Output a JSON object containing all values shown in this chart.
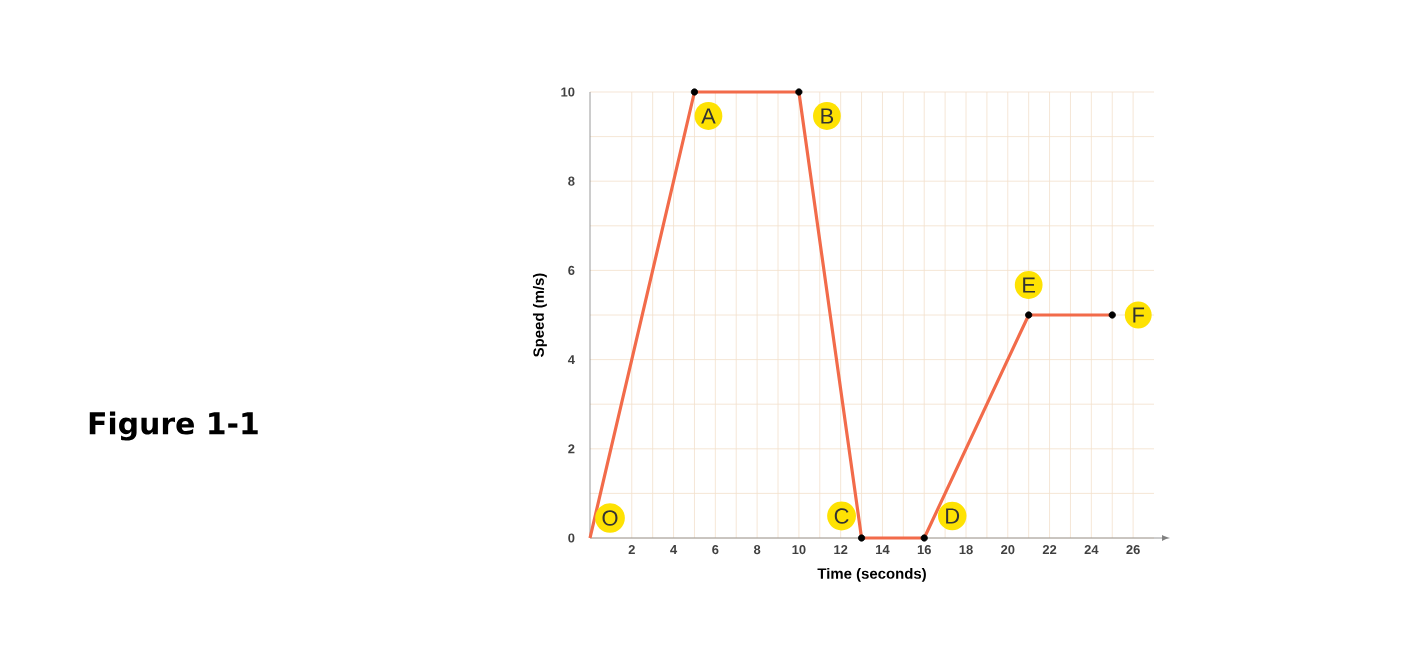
{
  "chart_data": {
    "type": "line",
    "xlabel": "Time (seconds)",
    "ylabel": "Speed (m/s)",
    "series": [
      {
        "color": "#f26b4a",
        "x": [
          0,
          5,
          10,
          13,
          16,
          21,
          25
        ],
        "values": [
          0,
          10,
          10,
          0,
          0,
          5,
          5
        ],
        "marker": "none"
      },
      {
        "type": "scatter",
        "color": "#000000",
        "x": [
          5,
          10,
          13,
          16,
          21,
          25
        ],
        "values": [
          10,
          10,
          0,
          0,
          5,
          5
        ],
        "marker": "circle"
      }
    ],
    "xlim": [
      0,
      27
    ],
    "ylim": [
      0,
      10
    ],
    "xticks": [
      2,
      4,
      6,
      8,
      10,
      12,
      14,
      16,
      18,
      20,
      22,
      24,
      26
    ],
    "yticks": [
      0,
      2,
      4,
      6,
      8,
      10
    ],
    "grid": true,
    "annotations": [
      {
        "text": "O",
        "x": 0,
        "y": 0
      },
      {
        "text": "A",
        "x": 5,
        "y": 10
      },
      {
        "text": "B",
        "x": 10,
        "y": 10
      },
      {
        "text": "C",
        "x": 13,
        "y": 0
      },
      {
        "text": "D",
        "x": 16,
        "y": 0
      },
      {
        "text": "E",
        "x": 21,
        "y": 5
      },
      {
        "text": "F",
        "x": 25,
        "y": 5
      },
      "Figure 1-1"
    ]
  }
}
